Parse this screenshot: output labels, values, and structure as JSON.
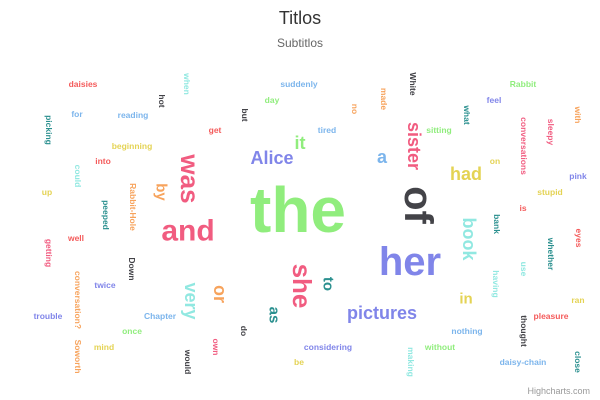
{
  "chart_data": {
    "type": "wordcloud",
    "title": "Titlos",
    "subtitle": "Subtitlos",
    "credit": "Highcharts.com",
    "words": [
      {
        "text": "the",
        "weight": 9,
        "color": "#90ed7d",
        "rotation": 0
      },
      {
        "text": "her",
        "weight": 6,
        "color": "#8085e9",
        "rotation": 0
      },
      {
        "text": "of",
        "weight": 6,
        "color": "#434348",
        "rotation": 90
      },
      {
        "text": "and",
        "weight": 5,
        "color": "#f15c80",
        "rotation": 0
      },
      {
        "text": "was",
        "weight": 4,
        "color": "#f15c80",
        "rotation": 90
      },
      {
        "text": "she",
        "weight": 4,
        "color": "#f15c80",
        "rotation": 90
      },
      {
        "text": "sister",
        "weight": 3,
        "color": "#f15c80",
        "rotation": 90
      },
      {
        "text": "or",
        "weight": 3,
        "color": "#f7a35c",
        "rotation": 90
      },
      {
        "text": "pictures",
        "weight": 3,
        "color": "#8085e9",
        "rotation": 0
      },
      {
        "text": "book",
        "weight": 3,
        "color": "#91e8e1",
        "rotation": 90
      },
      {
        "text": "very",
        "weight": 3,
        "color": "#91e8e1",
        "rotation": 90
      },
      {
        "text": "had",
        "weight": 3,
        "color": "#e4d354",
        "rotation": 0
      },
      {
        "text": "a",
        "weight": 3,
        "color": "#7cb5ec",
        "rotation": 0
      },
      {
        "text": "Alice",
        "weight": 3,
        "color": "#8085e9",
        "rotation": 0
      },
      {
        "text": "it",
        "weight": 3,
        "color": "#90ed7d",
        "rotation": 0
      },
      {
        "text": "by",
        "weight": 2,
        "color": "#f7a35c",
        "rotation": 90
      },
      {
        "text": "in",
        "weight": 2,
        "color": "#e4d354",
        "rotation": 0
      },
      {
        "text": "as",
        "weight": 2,
        "color": "#2b908f",
        "rotation": 90
      },
      {
        "text": "to",
        "weight": 2,
        "color": "#2b908f",
        "rotation": 90
      },
      {
        "text": "daisies",
        "weight": 1,
        "color": "#f45b5b",
        "rotation": 0
      },
      {
        "text": "when",
        "weight": 1,
        "color": "#91e8e1",
        "rotation": 90
      },
      {
        "text": "suddenly",
        "weight": 1,
        "color": "#7cb5ec",
        "rotation": 0
      },
      {
        "text": "White",
        "weight": 1,
        "color": "#434348",
        "rotation": 90
      },
      {
        "text": "Rabbit",
        "weight": 1,
        "color": "#90ed7d",
        "rotation": 0
      },
      {
        "text": "hot",
        "weight": 1,
        "color": "#434348",
        "rotation": 90
      },
      {
        "text": "day",
        "weight": 1,
        "color": "#90ed7d",
        "rotation": 0
      },
      {
        "text": "made",
        "weight": 1,
        "color": "#f7a35c",
        "rotation": 90
      },
      {
        "text": "feel",
        "weight": 1,
        "color": "#8085e9",
        "rotation": 0
      },
      {
        "text": "for",
        "weight": 1,
        "color": "#7cb5ec",
        "rotation": 0
      },
      {
        "text": "reading",
        "weight": 1,
        "color": "#7cb5ec",
        "rotation": 0
      },
      {
        "text": "but",
        "weight": 1,
        "color": "#434348",
        "rotation": 90
      },
      {
        "text": "no",
        "weight": 1,
        "color": "#f7a35c",
        "rotation": 90
      },
      {
        "text": "what",
        "weight": 1,
        "color": "#2b908f",
        "rotation": 90
      },
      {
        "text": "with",
        "weight": 1,
        "color": "#f7a35c",
        "rotation": 90
      },
      {
        "text": "picking",
        "weight": 1,
        "color": "#2b908f",
        "rotation": 90
      },
      {
        "text": "get",
        "weight": 1,
        "color": "#f45b5b",
        "rotation": 0
      },
      {
        "text": "tired",
        "weight": 1,
        "color": "#7cb5ec",
        "rotation": 0
      },
      {
        "text": "sitting",
        "weight": 1,
        "color": "#90ed7d",
        "rotation": 0
      },
      {
        "text": "conversations",
        "weight": 1,
        "color": "#f15c80",
        "rotation": 90
      },
      {
        "text": "sleepy",
        "weight": 1,
        "color": "#f15c80",
        "rotation": 90
      },
      {
        "text": "beginning",
        "weight": 1,
        "color": "#e4d354",
        "rotation": 0
      },
      {
        "text": "into",
        "weight": 1,
        "color": "#f45b5b",
        "rotation": 0
      },
      {
        "text": "on",
        "weight": 1,
        "color": "#e4d354",
        "rotation": 0
      },
      {
        "text": "pink",
        "weight": 1,
        "color": "#8085e9",
        "rotation": 0
      },
      {
        "text": "could",
        "weight": 1,
        "color": "#91e8e1",
        "rotation": 90
      },
      {
        "text": "up",
        "weight": 1,
        "color": "#e4d354",
        "rotation": 0
      },
      {
        "text": "Rabbit-Hole",
        "weight": 1,
        "color": "#f7a35c",
        "rotation": 90
      },
      {
        "text": "stupid",
        "weight": 1,
        "color": "#e4d354",
        "rotation": 0
      },
      {
        "text": "is",
        "weight": 1,
        "color": "#f45b5b",
        "rotation": 0
      },
      {
        "text": "peeped",
        "weight": 1,
        "color": "#2b908f",
        "rotation": 90
      },
      {
        "text": "bank",
        "weight": 1,
        "color": "#2b908f",
        "rotation": 90
      },
      {
        "text": "eyes",
        "weight": 1,
        "color": "#f45b5b",
        "rotation": 90
      },
      {
        "text": "well",
        "weight": 1,
        "color": "#f45b5b",
        "rotation": 0
      },
      {
        "text": "getting",
        "weight": 1,
        "color": "#f15c80",
        "rotation": 90
      },
      {
        "text": "whether",
        "weight": 1,
        "color": "#2b908f",
        "rotation": 90
      },
      {
        "text": "Down",
        "weight": 1,
        "color": "#434348",
        "rotation": 90
      },
      {
        "text": "use",
        "weight": 1,
        "color": "#91e8e1",
        "rotation": 90
      },
      {
        "text": "twice",
        "weight": 1,
        "color": "#8085e9",
        "rotation": 0
      },
      {
        "text": "conversation?",
        "weight": 1,
        "color": "#f7a35c",
        "rotation": 90
      },
      {
        "text": "having",
        "weight": 1,
        "color": "#91e8e1",
        "rotation": 90
      },
      {
        "text": "ran",
        "weight": 1,
        "color": "#e4d354",
        "rotation": 0
      },
      {
        "text": "trouble",
        "weight": 1,
        "color": "#8085e9",
        "rotation": 0
      },
      {
        "text": "Chapter",
        "weight": 1,
        "color": "#7cb5ec",
        "rotation": 0
      },
      {
        "text": "So",
        "weight": 1,
        "color": "#f7a35c",
        "rotation": 90
      },
      {
        "text": "once",
        "weight": 1,
        "color": "#90ed7d",
        "rotation": 0
      },
      {
        "text": "do",
        "weight": 1,
        "color": "#434348",
        "rotation": 90
      },
      {
        "text": "thought",
        "weight": 1,
        "color": "#434348",
        "rotation": 90
      },
      {
        "text": "pleasure",
        "weight": 1,
        "color": "#f45b5b",
        "rotation": 0
      },
      {
        "text": "nothing",
        "weight": 1,
        "color": "#7cb5ec",
        "rotation": 0
      },
      {
        "text": "mind",
        "weight": 1,
        "color": "#e4d354",
        "rotation": 0
      },
      {
        "text": "own",
        "weight": 1,
        "color": "#f15c80",
        "rotation": 90
      },
      {
        "text": "considering",
        "weight": 1,
        "color": "#8085e9",
        "rotation": 0
      },
      {
        "text": "without",
        "weight": 1,
        "color": "#90ed7d",
        "rotation": 0
      },
      {
        "text": "worth",
        "weight": 1,
        "color": "#f7a35c",
        "rotation": 90
      },
      {
        "text": "would",
        "weight": 1,
        "color": "#434348",
        "rotation": 90
      },
      {
        "text": "be",
        "weight": 1,
        "color": "#e4d354",
        "rotation": 0
      },
      {
        "text": "making",
        "weight": 1,
        "color": "#91e8e1",
        "rotation": 90
      },
      {
        "text": "daisy-chain",
        "weight": 1,
        "color": "#7cb5ec",
        "rotation": 0
      },
      {
        "text": "close",
        "weight": 1,
        "color": "#2b908f",
        "rotation": 90
      }
    ]
  }
}
